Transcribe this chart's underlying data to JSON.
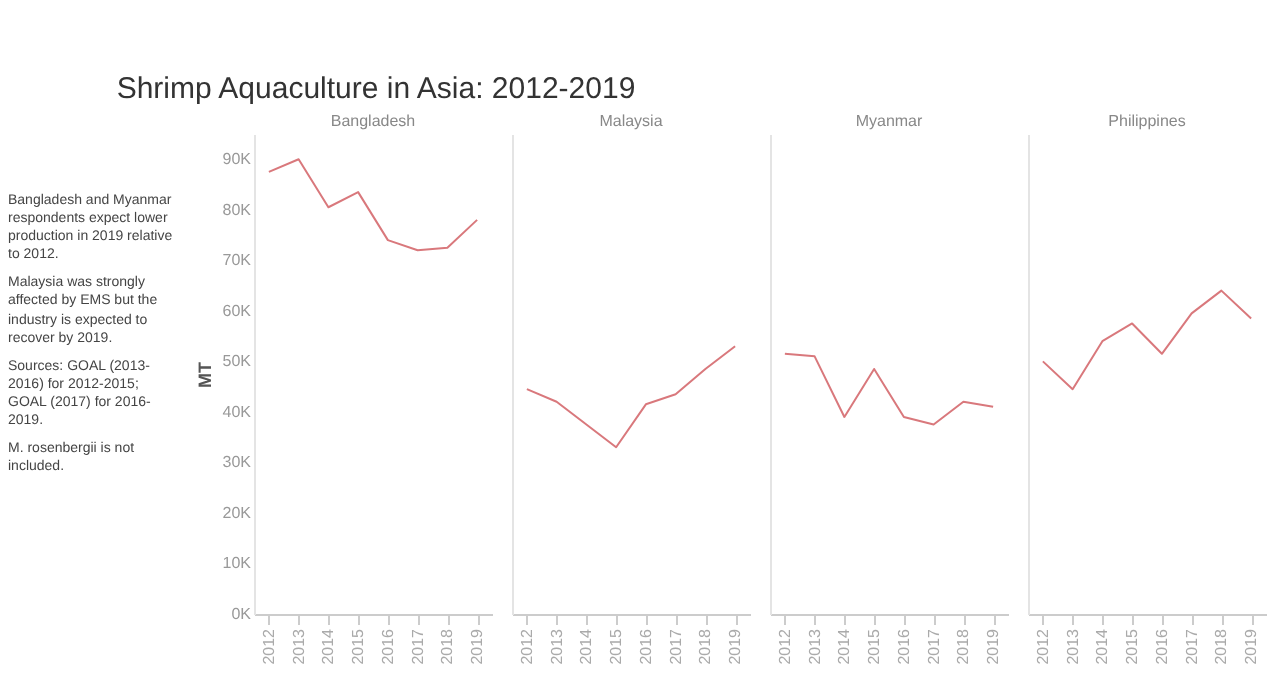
{
  "chart_data": [
    {
      "type": "line",
      "title": "Shrimp Aquaculture in Asia: 2012-2019",
      "ylabel": "MT",
      "categories": [
        "2012",
        "2013",
        "2014",
        "2015",
        "2016",
        "2017",
        "2018",
        "2019"
      ],
      "series": [
        {
          "name": "Bangladesh",
          "color": "#d9787c",
          "values": [
            87500,
            90000,
            80500,
            83500,
            74000,
            72000,
            72500,
            78000
          ]
        }
      ],
      "ylim": [
        0,
        95000
      ],
      "yticks": [
        {
          "value": 0,
          "label": "0K"
        },
        {
          "value": 10000,
          "label": "10K"
        },
        {
          "value": 20000,
          "label": "20K"
        },
        {
          "value": 30000,
          "label": "30K"
        },
        {
          "value": 40000,
          "label": "40K"
        },
        {
          "value": 50000,
          "label": "50K"
        },
        {
          "value": 60000,
          "label": "60K"
        },
        {
          "value": 70000,
          "label": "70K"
        },
        {
          "value": 80000,
          "label": "80K"
        },
        {
          "value": 90000,
          "label": "90K"
        }
      ],
      "annotations": [
        "Bangladesh and Myanmar respondents expect lower production in 2019 relative to 2012.",
        "Malaysia was strongly affected by EMS but the industry is expected to recover by 2019.",
        "Sources: GOAL (2013-2016) for 2012-2015; GOAL (2017) for 2016-2019.",
        "M. rosenbergii is not included."
      ]
    },
    {
      "type": "line",
      "tick_labels": "x",
      "categories": [
        "2012",
        "2013",
        "2014",
        "2015",
        "2016",
        "2017",
        "2018",
        "2019"
      ],
      "series": [
        {
          "name": "Malaysia",
          "color": "#d9787c",
          "values": [
            44500,
            42000,
            37500,
            33000,
            41500,
            43500,
            48500,
            53000
          ]
        }
      ],
      "ylim": [
        0,
        95000
      ]
    },
    {
      "type": "line",
      "tick_labels": "x",
      "categories": [
        "2012",
        "2013",
        "2014",
        "2015",
        "2016",
        "2017",
        "2018",
        "2019"
      ],
      "series": [
        {
          "name": "Myanmar",
          "color": "#d9787c",
          "values": [
            51500,
            51000,
            39000,
            48500,
            39000,
            37500,
            42000,
            41000
          ]
        }
      ],
      "ylim": [
        0,
        95000
      ]
    },
    {
      "type": "line",
      "tick_labels": "x",
      "categories": [
        "2012",
        "2013",
        "2014",
        "2015",
        "2016",
        "2017",
        "2018",
        "2019"
      ],
      "series": [
        {
          "name": "Philippines",
          "color": "#d9787c",
          "values": [
            50000,
            44500,
            54000,
            57500,
            51500,
            59500,
            64000,
            58500
          ]
        }
      ],
      "ylim": [
        0,
        95000
      ]
    }
  ]
}
